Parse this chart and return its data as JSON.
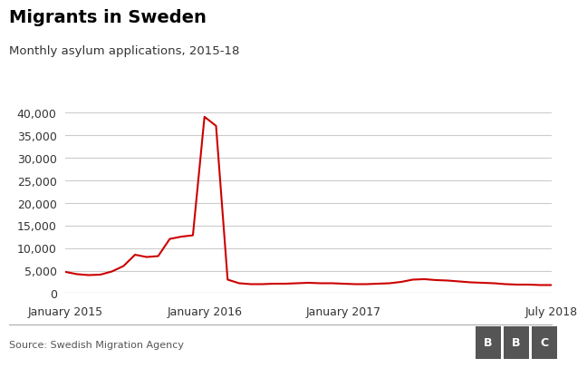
{
  "title": "Migrants in Sweden",
  "subtitle": "Monthly asylum applications, 2015-18",
  "source": "Source: Swedish Migration Agency",
  "line_color": "#cc0000",
  "background_color": "#ffffff",
  "grid_color": "#cccccc",
  "ylim": [
    0,
    42000
  ],
  "yticks": [
    0,
    5000,
    10000,
    15000,
    20000,
    25000,
    30000,
    35000,
    40000
  ],
  "xtick_labels": [
    "January 2015",
    "January 2016",
    "January 2017",
    "July 2018"
  ],
  "xtick_positions": [
    0,
    12,
    24,
    42
  ],
  "values": [
    4700,
    4200,
    4000,
    4100,
    4800,
    6000,
    8500,
    8000,
    8200,
    12000,
    12500,
    12800,
    39000,
    37000,
    3000,
    2200,
    2000,
    2000,
    2100,
    2100,
    2200,
    2300,
    2200,
    2200,
    2100,
    2000,
    2000,
    2100,
    2200,
    2500,
    3000,
    3100,
    2900,
    2800,
    2600,
    2400,
    2300,
    2200,
    2000,
    1900,
    1900,
    1800,
    1800
  ]
}
